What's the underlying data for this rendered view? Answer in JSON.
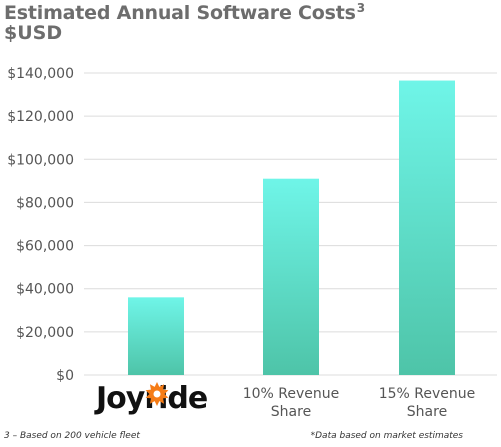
{
  "chart_data": {
    "type": "bar",
    "title": "Estimated Annual Software Costs",
    "title_superscript": "3",
    "subtitle": "$USD",
    "categories": [
      "Joyride",
      "10% Revenue Share",
      "15% Revenue Share"
    ],
    "category_lines": [
      [
        "Joyride"
      ],
      [
        "10% Revenue",
        "Share"
      ],
      [
        "15% Revenue",
        "Share"
      ]
    ],
    "values": [
      36000,
      91000,
      136500
    ],
    "ylim": [
      0,
      140000
    ],
    "yticks": [
      0,
      20000,
      40000,
      60000,
      80000,
      100000,
      120000,
      140000
    ],
    "ytick_labels": [
      "$0",
      "$20,000",
      "$40,000",
      "$60,000",
      "$80,000",
      "$100,000",
      "$120,000",
      "$140,000"
    ],
    "grid": true,
    "bar_color_top": "#6ff5e8",
    "bar_color_bottom": "#4ec4a8",
    "grid_color": "#dcdcdc"
  },
  "logo": {
    "text": "Joyride",
    "accent_color": "#f57c16",
    "icon": "burst-icon"
  },
  "footnotes": {
    "left": "3 – Based on 200 vehicle fleet",
    "right": "*Data based on market estimates"
  }
}
